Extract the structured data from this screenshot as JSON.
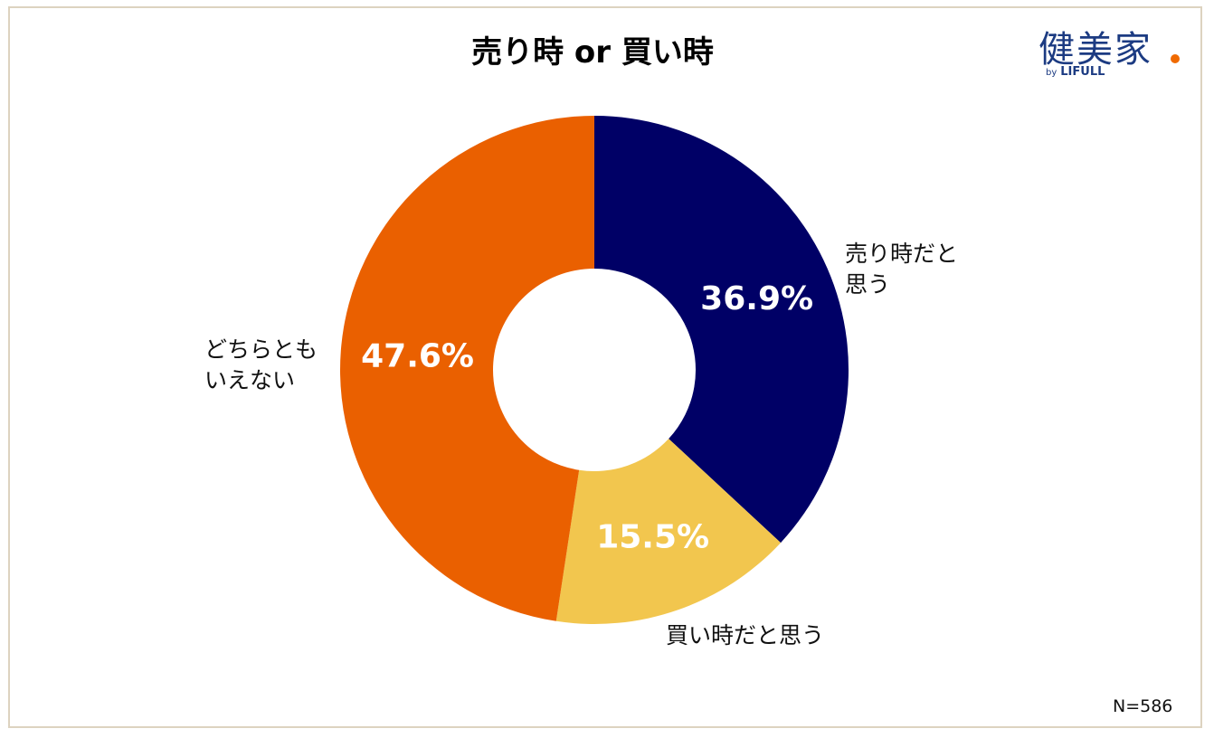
{
  "chart_data": {
    "type": "pie",
    "title": "売り時 or 買い時",
    "categories": [
      "売り時だと思う",
      "買い時だと思う",
      "どちらともいえない"
    ],
    "values": [
      36.9,
      15.5,
      47.6
    ],
    "data_labels": [
      "36.9%",
      "15.5%",
      "47.6%"
    ],
    "colors": [
      "#000066",
      "#f2c64e",
      "#ea6000"
    ],
    "donut": true,
    "start": "top",
    "direction": "clockwise",
    "label_lines": {
      "sell": [
        "売り時だと",
        "思う"
      ],
      "buy": [
        "買い時だと思う"
      ],
      "neither": [
        "どちらとも",
        "いえない"
      ]
    },
    "note": "N=586"
  },
  "logo": {
    "main": "健美家",
    "by": "by",
    "brand": "LIFULL",
    "dot_color": "#f06a00"
  }
}
